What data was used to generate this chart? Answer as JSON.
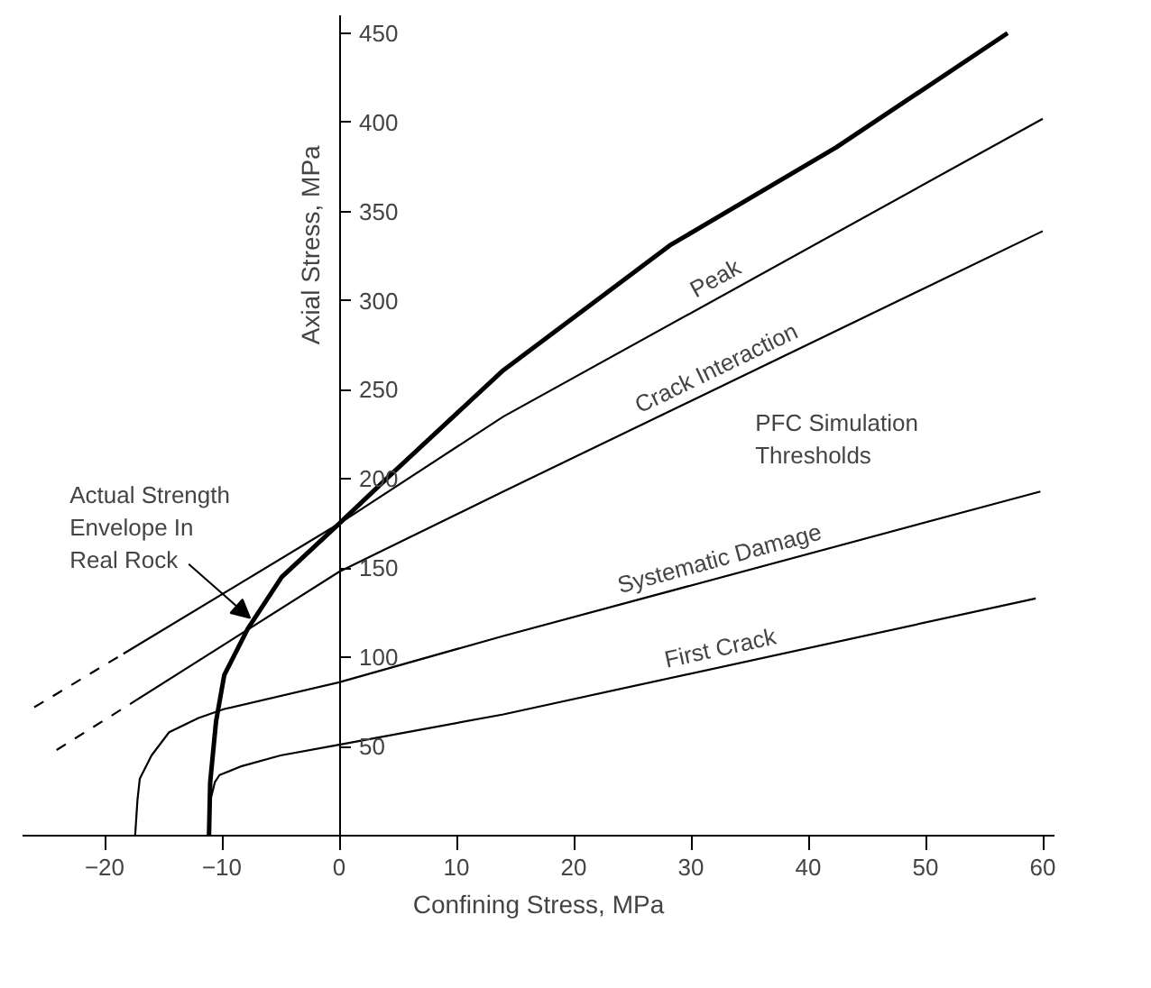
{
  "chart_data": {
    "type": "line",
    "xlabel": "Confining Stress, MPa",
    "ylabel": "Axial Stress, MPa",
    "xlim": [
      -27,
      61
    ],
    "ylim": [
      0,
      460
    ],
    "xticks": [
      -20,
      -10,
      0,
      10,
      20,
      30,
      40,
      50,
      60
    ],
    "yticks": [
      50,
      100,
      150,
      200,
      250,
      300,
      350,
      400,
      450
    ],
    "grid": false,
    "line_style": "solid",
    "series": [
      {
        "color": "#000000",
        "x": [
          -11.1,
          -11,
          -10.5,
          -9.8,
          -7.8,
          -4.9,
          0,
          4.5,
          14,
          28.2,
          42.4,
          57
        ],
        "values": [
          0,
          30,
          64,
          90,
          116,
          145,
          175,
          203,
          261,
          331,
          386,
          450
        ]
      },
      {
        "name": "Peak",
        "color": "#000000",
        "x": [
          -18.4,
          0,
          14,
          60
        ],
        "values": [
          102,
          175,
          235,
          402
        ]
      },
      {
        "color": "#000000",
        "line_style": "dashed",
        "x": [
          -26,
          -18.4
        ],
        "values": [
          72,
          102
        ]
      },
      {
        "name": "Crack Interaction",
        "color": "#000000",
        "x": [
          -17.3,
          0,
          14,
          60
        ],
        "values": [
          76,
          148,
          193,
          339
        ]
      },
      {
        "color": "#000000",
        "line_style": "dashed",
        "x": [
          -24.1,
          -17.3
        ],
        "values": [
          48,
          76
        ]
      },
      {
        "name": "Systematic Damage",
        "color": "#000000",
        "x": [
          -17.4,
          -17.2,
          -17,
          -16,
          -14.5,
          -12,
          -9.8,
          0,
          14,
          59.8
        ],
        "values": [
          0,
          20,
          32,
          45,
          58,
          66,
          71,
          86,
          112,
          193
        ]
      },
      {
        "name": "First Crack",
        "color": "#000000",
        "x": [
          -10.9,
          -10.6,
          -10.2,
          -8.3,
          -5,
          0,
          14,
          59.4
        ],
        "values": [
          22,
          30,
          34,
          39,
          45,
          51,
          68,
          133
        ]
      }
    ],
    "annotations": [
      {
        "text": "Actual Strength\nEnvelope In\nReal Rock",
        "x": -7.6,
        "y": 122
      },
      "PFC Simulation\nThresholds"
    ]
  }
}
